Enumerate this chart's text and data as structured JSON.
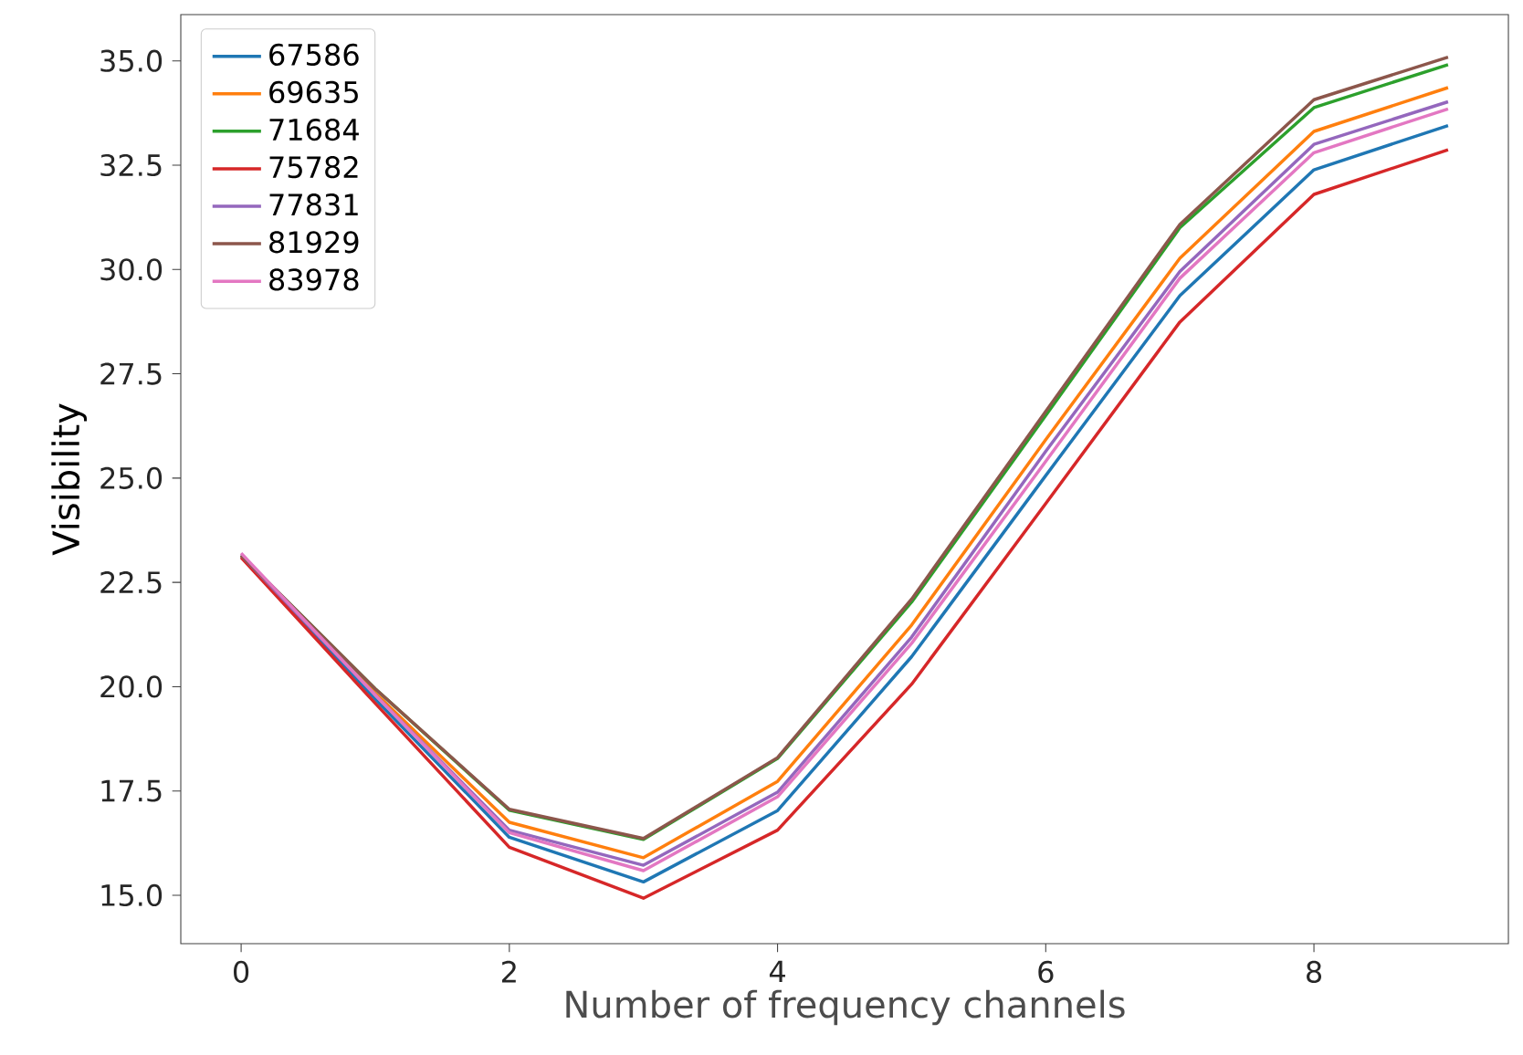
{
  "chart_data": {
    "type": "line",
    "xlabel": "Number of frequency channels",
    "ylabel": "Visibility",
    "x": [
      0,
      1,
      2,
      3,
      4,
      5,
      6,
      7,
      8,
      9
    ],
    "xlim": [
      -0.45,
      9.45
    ],
    "ylim": [
      13.84,
      36.11
    ],
    "xticks": [
      0,
      2,
      4,
      6,
      8
    ],
    "yticks": [
      {
        "value": 15,
        "label": "15.0"
      },
      {
        "value": 17.5,
        "label": "17.5"
      },
      {
        "value": 20,
        "label": "20.0"
      },
      {
        "value": 22.5,
        "label": "22.5"
      },
      {
        "value": 25,
        "label": "25.0"
      },
      {
        "value": 27.5,
        "label": "27.5"
      },
      {
        "value": 30,
        "label": "30.0"
      },
      {
        "value": 32.5,
        "label": "32.5"
      },
      {
        "value": 35,
        "label": "35.0"
      }
    ],
    "grid": false,
    "legend": "top left",
    "marker": "none",
    "line_style": "solid",
    "series": [
      {
        "name": "67586",
        "color": "#1f77b4",
        "values": [
          23.15,
          19.7,
          16.39,
          15.32,
          17.03,
          20.72,
          25.06,
          29.37,
          32.39,
          33.45
        ]
      },
      {
        "name": "69635",
        "color": "#ff7f0e",
        "values": [
          23.15,
          19.85,
          16.75,
          15.9,
          17.73,
          21.48,
          25.92,
          30.27,
          33.31,
          34.36
        ]
      },
      {
        "name": "71684",
        "color": "#2ca02c",
        "values": [
          23.15,
          19.95,
          17.04,
          16.34,
          18.28,
          22.03,
          26.5,
          31.0,
          33.88,
          34.91
        ]
      },
      {
        "name": "75782",
        "color": "#d62728",
        "values": [
          23.1,
          19.6,
          16.15,
          14.93,
          16.56,
          20.06,
          24.39,
          28.74,
          31.8,
          32.87
        ]
      },
      {
        "name": "77831",
        "color": "#9467bd",
        "values": [
          23.15,
          19.8,
          16.56,
          15.72,
          17.47,
          21.19,
          25.64,
          29.95,
          33.0,
          34.02
        ]
      },
      {
        "name": "81929",
        "color": "#8c564b",
        "values": [
          23.15,
          19.95,
          17.06,
          16.36,
          18.3,
          22.1,
          26.6,
          31.08,
          34.07,
          35.09
        ]
      },
      {
        "name": "83978",
        "color": "#e377c2",
        "values": [
          23.2,
          19.8,
          16.5,
          15.59,
          17.36,
          21.04,
          25.4,
          29.79,
          32.8,
          33.85
        ]
      }
    ]
  }
}
